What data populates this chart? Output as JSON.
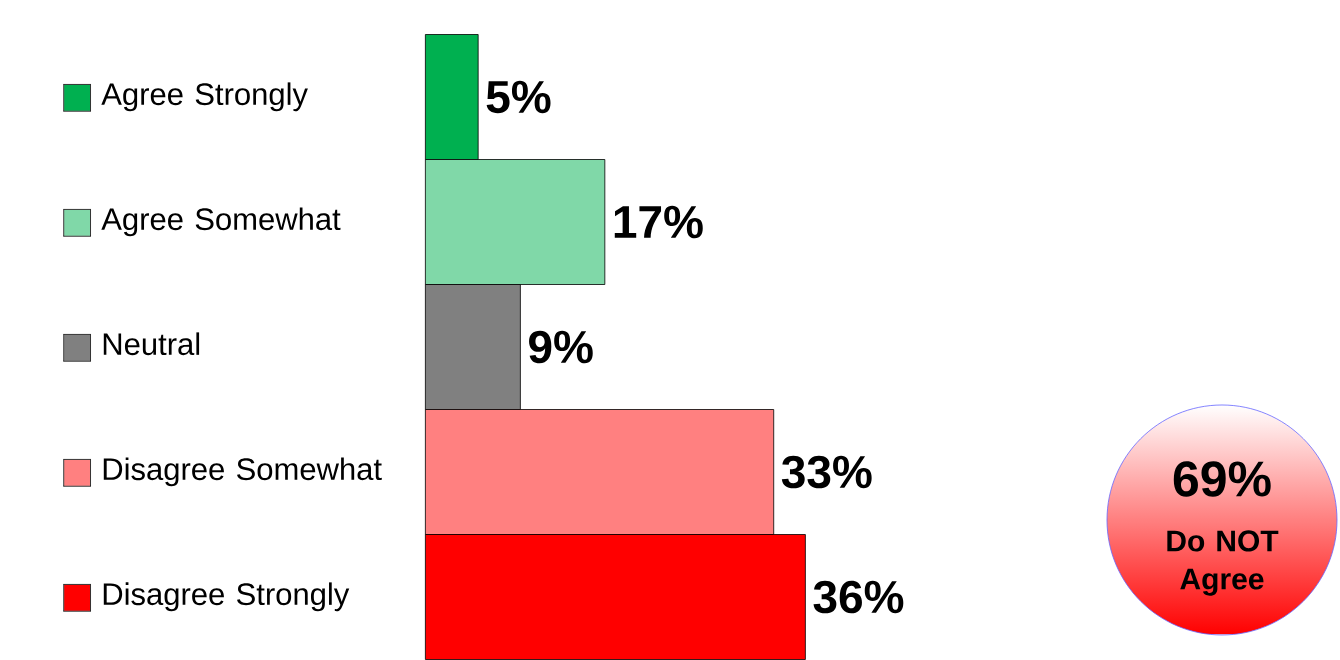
{
  "chart_data": {
    "type": "bar",
    "orientation": "horizontal",
    "categories": [
      "Agree Strongly",
      "Agree Somewhat",
      "Neutral",
      "Disagree Somewhat",
      "Disagree Strongly"
    ],
    "values": [
      5,
      17,
      9,
      33,
      36
    ],
    "colors": [
      "#00b050",
      "#80d8a8",
      "#808080",
      "#ff8080",
      "#ff0000"
    ],
    "value_labels": [
      "5%",
      "17%",
      "9%",
      "33%",
      "36%"
    ],
    "annotations": [
      "69%",
      "Do NOT Agree"
    ]
  }
}
